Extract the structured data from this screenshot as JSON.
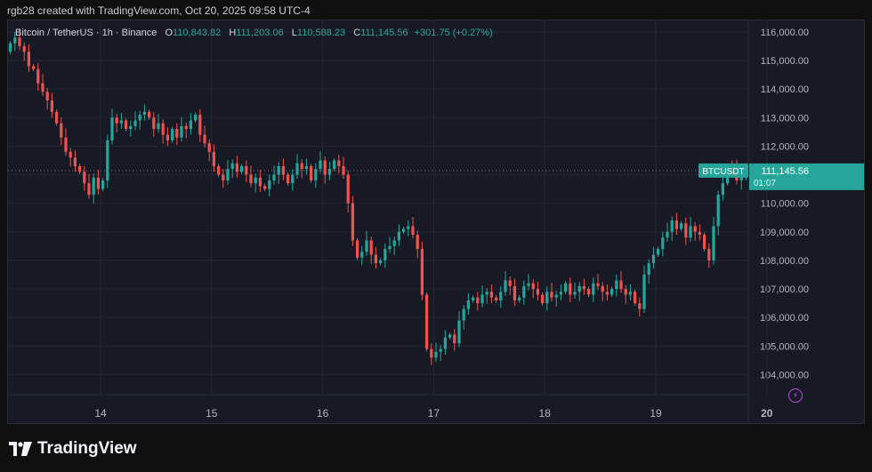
{
  "caption": "rgb28 created with TradingView.com, Oct 20, 2025 09:58 UTC-4",
  "legend": {
    "symbol": "Bitcoin / TetherUS · 1h · Binance",
    "o_label": "O",
    "o_value": "110,843.82",
    "h_label": "H",
    "h_value": "111,203.06",
    "l_label": "L",
    "l_value": "110,588.23",
    "c_label": "C",
    "c_value": "111,145.56",
    "change": "+301.75 (+0.27%)"
  },
  "badge": {
    "ticker": "BTCUSDT",
    "price": "111,145.56",
    "countdown": "01:07"
  },
  "brand": {
    "name": "TradingView"
  },
  "colors": {
    "up": "#26a69a",
    "down": "#ef5350",
    "grid": "#242733",
    "axis_text": "#b2b5be"
  },
  "chart_data": {
    "type": "candlestick",
    "y_axis": {
      "min": 103300,
      "max": 116400,
      "ticks": [
        104000,
        105000,
        106000,
        107000,
        108000,
        109000,
        110000,
        111000,
        112000,
        113000,
        114000,
        115000,
        116000
      ],
      "tick_labels": [
        "104,000.00",
        "105,000.00",
        "106,000.00",
        "107,000.00",
        "108,000.00",
        "109,000.00",
        "110,000.00",
        "111,000.00",
        "112,000.00",
        "113,000.00",
        "114,000.00",
        "115,000.00",
        "116,000.00"
      ]
    },
    "x_axis": {
      "labels": [
        "14",
        "15",
        "16",
        "17",
        "18",
        "19",
        "20"
      ],
      "start_hour": -20,
      "end_hour": 140
    },
    "last_price": 111145.56,
    "closes": [
      115600,
      115800,
      115500,
      115300,
      114800,
      114700,
      114200,
      113900,
      113600,
      113200,
      112800,
      112300,
      111800,
      111600,
      111300,
      111100,
      110700,
      110300,
      110900,
      110500,
      110800,
      112200,
      113000,
      112800,
      112900,
      112600,
      112700,
      112900,
      113100,
      113200,
      113000,
      112600,
      112800,
      112400,
      112200,
      112600,
      112300,
      112700,
      112600,
      112900,
      113100,
      112400,
      112100,
      111800,
      111300,
      111000,
      110800,
      111200,
      111400,
      111100,
      111300,
      111000,
      110700,
      110900,
      110600,
      110500,
      110800,
      111000,
      111300,
      111000,
      110700,
      111000,
      111400,
      111200,
      111300,
      110800,
      111200,
      111500,
      111000,
      111200,
      111500,
      111300,
      111000,
      110000,
      108700,
      108100,
      108300,
      108700,
      108200,
      107900,
      108000,
      108400,
      108500,
      108700,
      109000,
      109100,
      109200,
      108900,
      108400,
      106800,
      104900,
      104600,
      104800,
      104900,
      105300,
      105400,
      105100,
      105900,
      106300,
      106600,
      106700,
      106500,
      106800,
      106900,
      106700,
      106600,
      106900,
      107300,
      107100,
      106600,
      106700,
      107100,
      107200,
      107000,
      106800,
      106500,
      106900,
      106700,
      106800,
      106900,
      107200,
      106800,
      106900,
      107100,
      107000,
      106800,
      107200,
      107100,
      106900,
      106800,
      107000,
      107300,
      107000,
      106800,
      106900,
      106500,
      106300,
      107500,
      107900,
      108200,
      108400,
      108800,
      109000,
      109400,
      109100,
      109300,
      108800,
      109200,
      109000,
      108900,
      108400,
      108000,
      109200,
      110300,
      110700,
      111300,
      111200,
      110800,
      111000,
      111146
    ]
  }
}
